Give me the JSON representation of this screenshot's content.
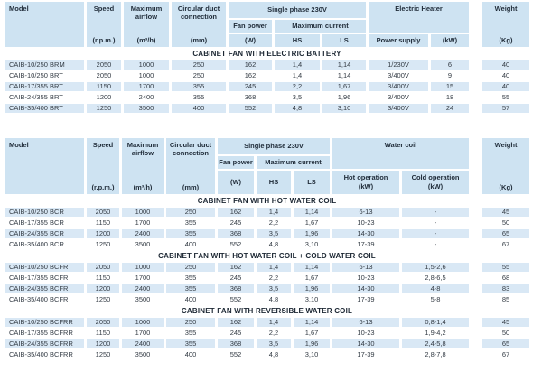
{
  "colors": {
    "header_bg": "#cee3f2",
    "row_blue": "#d9e8f5",
    "section_text": "#1c2733",
    "header_text": "#1f2b38"
  },
  "table1": {
    "header": {
      "model": "Model",
      "speed": "Speed",
      "speed_unit": "(r.p.m.)",
      "airflow": "Maximum airflow",
      "airflow_unit": "(m³/h)",
      "duct": "Circular duct connection",
      "duct_unit": "(mm)",
      "single_phase": "Single phase 230V",
      "fan_power": "Fan power",
      "fan_power_unit": "(W)",
      "max_current": "Maximum current",
      "hs": "HS",
      "ls": "LS",
      "group": "Electric Heater",
      "power_supply": "Power supply",
      "kw": "(kW)",
      "weight": "Weight",
      "weight_unit": "(Kg)"
    },
    "sections": [
      {
        "title": "CABINET FAN WITH ELECTRIC BATTERY",
        "rows": [
          [
            "CAIB-10/250 BRM",
            "2050",
            "1000",
            "250",
            "162",
            "1,4",
            "1,14",
            "1/230V",
            "6",
            "40"
          ],
          [
            "CAIB-10/250 BRT",
            "2050",
            "1000",
            "250",
            "162",
            "1,4",
            "1,14",
            "3/400V",
            "9",
            "40"
          ],
          [
            "CAIB-17/355 BRT",
            "1150",
            "1700",
            "355",
            "245",
            "2,2",
            "1,67",
            "3/400V",
            "15",
            "40"
          ],
          [
            "CAIB-24/355 BRT",
            "1200",
            "2400",
            "355",
            "368",
            "3,5",
            "1,96",
            "3/400V",
            "18",
            "55"
          ],
          [
            "CAIB-35/400 BRT",
            "1250",
            "3500",
            "400",
            "552",
            "4,8",
            "3,10",
            "3/400V",
            "24",
            "57"
          ]
        ]
      }
    ]
  },
  "table2": {
    "header": {
      "model": "Model",
      "speed": "Speed",
      "speed_unit": "(r.p.m.)",
      "airflow": "Maximum airflow",
      "airflow_unit": "(m³/h)",
      "duct": "Circular duct connection",
      "duct_unit": "(mm)",
      "single_phase": "Single phase 230V",
      "fan_power": "Fan power",
      "fan_power_unit": "(W)",
      "max_current": "Maximum current",
      "hs": "HS",
      "ls": "LS",
      "group": "Water coil",
      "hot": "Hot operation",
      "hot_unit": "(kW)",
      "cold": "Cold operation",
      "cold_unit": "(kW)",
      "weight": "Weight",
      "weight_unit": "(Kg)"
    },
    "sections": [
      {
        "title": "CABINET FAN WITH HOT WATER COIL",
        "rows": [
          [
            "CAIB-10/250 BCR",
            "2050",
            "1000",
            "250",
            "162",
            "1,4",
            "1,14",
            "6-13",
            "-",
            "45"
          ],
          [
            "CAIB-17/355 BCR",
            "1150",
            "1700",
            "355",
            "245",
            "2,2",
            "1,67",
            "10-23",
            "-",
            "50"
          ],
          [
            "CAIB-24/355 BCR",
            "1200",
            "2400",
            "355",
            "368",
            "3,5",
            "1,96",
            "14-30",
            "-",
            "65"
          ],
          [
            "CAIB-35/400 BCR",
            "1250",
            "3500",
            "400",
            "552",
            "4,8",
            "3,10",
            "17-39",
            "-",
            "67"
          ]
        ]
      },
      {
        "title": "CABINET FAN WITH HOT WATER COIL + COLD WATER COIL",
        "rows": [
          [
            "CAIB-10/250 BCFR",
            "2050",
            "1000",
            "250",
            "162",
            "1,4",
            "1,14",
            "6-13",
            "1,5-2,6",
            "55"
          ],
          [
            "CAIB-17/355 BCFR",
            "1150",
            "1700",
            "355",
            "245",
            "2,2",
            "1,67",
            "10-23",
            "2,8-6,5",
            "68"
          ],
          [
            "CAIB-24/355 BCFR",
            "1200",
            "2400",
            "355",
            "368",
            "3,5",
            "1,96",
            "14-30",
            "4-8",
            "83"
          ],
          [
            "CAIB-35/400 BCFR",
            "1250",
            "3500",
            "400",
            "552",
            "4,8",
            "3,10",
            "17-39",
            "5-8",
            "85"
          ]
        ]
      },
      {
        "title": "CABINET FAN WITH REVERSIBLE WATER COIL",
        "rows": [
          [
            "CAIB-10/250 BCFRR",
            "2050",
            "1000",
            "250",
            "162",
            "1,4",
            "1,14",
            "6-13",
            "0,8-1,4",
            "45"
          ],
          [
            "CAIB-17/355 BCFRR",
            "1150",
            "1700",
            "355",
            "245",
            "2,2",
            "1,67",
            "10-23",
            "1,9-4,2",
            "50"
          ],
          [
            "CAIB-24/355 BCFRR",
            "1200",
            "2400",
            "355",
            "368",
            "3,5",
            "1,96",
            "14-30",
            "2,4-5,8",
            "65"
          ],
          [
            "CAIB-35/400 BCFRR",
            "1250",
            "3500",
            "400",
            "552",
            "4,8",
            "3,10",
            "17-39",
            "2,8-7,8",
            "67"
          ]
        ]
      }
    ]
  }
}
